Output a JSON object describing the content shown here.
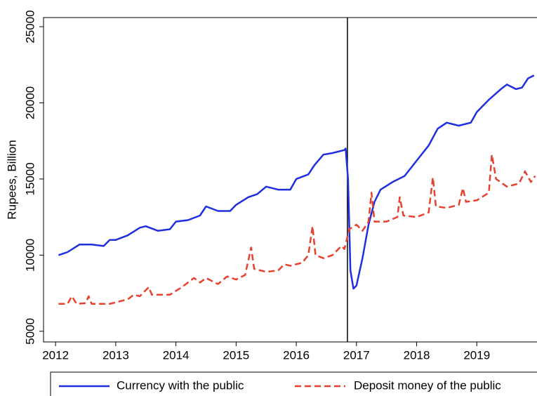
{
  "chart_data": {
    "type": "line",
    "y_label": "Rupees, Billion",
    "xlim": [
      2011.8,
      2020.0
    ],
    "xticks": [
      2012,
      2013,
      2014,
      2015,
      2016,
      2017,
      2018,
      2019
    ],
    "ylim": [
      4300,
      25600
    ],
    "yticks": [
      5000,
      10000,
      15000,
      20000,
      25000
    ],
    "vline": 2016.85,
    "legend": "bottom",
    "series": [
      {
        "name": "Currency with the public",
        "color": "#1f2fe0",
        "dash": false,
        "x": [
          2012.05,
          2012.2,
          2012.4,
          2012.6,
          2012.8,
          2012.9,
          2013.0,
          2013.2,
          2013.4,
          2013.5,
          2013.7,
          2013.9,
          2014.0,
          2014.2,
          2014.4,
          2014.5,
          2014.7,
          2014.9,
          2015.0,
          2015.2,
          2015.35,
          2015.5,
          2015.7,
          2015.9,
          2016.0,
          2016.2,
          2016.3,
          2016.45,
          2016.6,
          2016.8,
          2016.82,
          2016.86,
          2016.9,
          2016.95,
          2017.0,
          2017.1,
          2017.2,
          2017.3,
          2017.4,
          2017.6,
          2017.8,
          2018.0,
          2018.2,
          2018.35,
          2018.5,
          2018.7,
          2018.9,
          2019.0,
          2019.2,
          2019.4,
          2019.5,
          2019.65,
          2019.75,
          2019.85,
          2019.95
        ],
        "values": [
          10000,
          10200,
          10700,
          10700,
          10600,
          11000,
          11000,
          11300,
          11800,
          11900,
          11600,
          11700,
          12200,
          12300,
          12600,
          13200,
          12900,
          12900,
          13300,
          13800,
          14000,
          14500,
          14300,
          14300,
          15000,
          15300,
          15900,
          16600,
          16700,
          16900,
          17000,
          15000,
          9000,
          7800,
          8000,
          9800,
          12000,
          13500,
          14300,
          14800,
          15200,
          16200,
          17200,
          18300,
          18700,
          18500,
          18700,
          19400,
          20200,
          20900,
          21200,
          20900,
          21000,
          21600,
          21800
        ]
      },
      {
        "name": "Deposit money of the public",
        "color": "#e8412e",
        "dash": true,
        "x": [
          2012.05,
          2012.2,
          2012.27,
          2012.35,
          2012.5,
          2012.55,
          2012.6,
          2012.9,
          2013.1,
          2013.2,
          2013.3,
          2013.4,
          2013.55,
          2013.6,
          2013.9,
          2014.1,
          2014.3,
          2014.4,
          2014.5,
          2014.7,
          2014.85,
          2015.0,
          2015.15,
          2015.25,
          2015.3,
          2015.5,
          2015.7,
          2015.8,
          2015.9,
          2016.1,
          2016.2,
          2016.27,
          2016.32,
          2016.45,
          2016.6,
          2016.75,
          2016.8,
          2016.88,
          2017.0,
          2017.1,
          2017.2,
          2017.25,
          2017.3,
          2017.5,
          2017.68,
          2017.72,
          2017.78,
          2018.0,
          2018.2,
          2018.27,
          2018.32,
          2018.5,
          2018.7,
          2018.77,
          2018.82,
          2019.0,
          2019.2,
          2019.25,
          2019.32,
          2019.5,
          2019.7,
          2019.8,
          2019.9,
          2019.97
        ],
        "values": [
          6800,
          6800,
          7300,
          6800,
          6850,
          7300,
          6800,
          6800,
          7000,
          7100,
          7400,
          7300,
          7900,
          7400,
          7400,
          7900,
          8500,
          8200,
          8500,
          8100,
          8600,
          8400,
          8700,
          10500,
          9100,
          8900,
          9000,
          9400,
          9300,
          9500,
          10000,
          11900,
          10000,
          9800,
          10000,
          10600,
          10400,
          11700,
          12000,
          11600,
          12200,
          14100,
          12200,
          12200,
          12500,
          13800,
          12600,
          12500,
          12800,
          15100,
          13200,
          13100,
          13300,
          14400,
          13500,
          13600,
          14100,
          16600,
          15000,
          14500,
          14700,
          15500,
          14800,
          15200
        ]
      }
    ]
  }
}
